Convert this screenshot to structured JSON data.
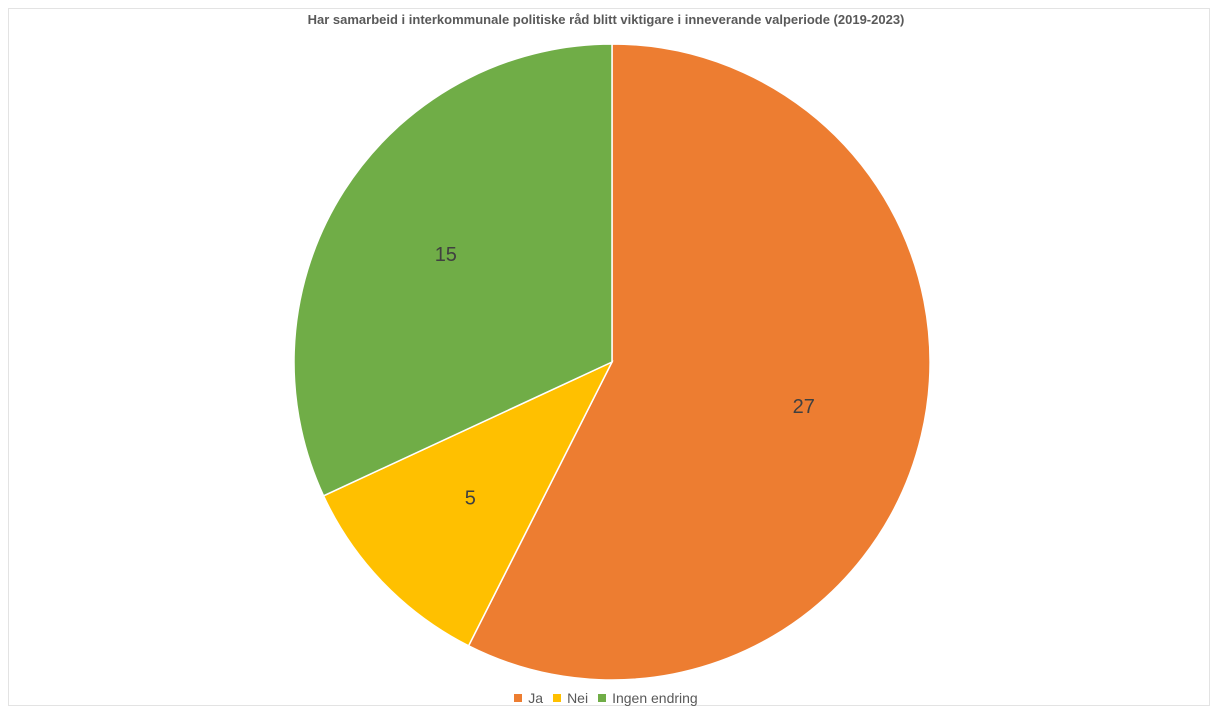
{
  "chart_data": {
    "type": "pie",
    "title": "Har samarbeid i interkommunale politiske råd blitt viktigare i inneverande valperiode (2019-2023)",
    "categories": [
      "Ja",
      "Nei",
      "Ingen endring"
    ],
    "values": [
      27,
      5,
      15
    ],
    "data_labels": [
      "27",
      "5",
      "15"
    ],
    "colors": [
      "#ED7D31",
      "#FFC000",
      "#70AD47"
    ],
    "legend_position": "bottom",
    "start_angle": "top",
    "direction": "clockwise"
  }
}
